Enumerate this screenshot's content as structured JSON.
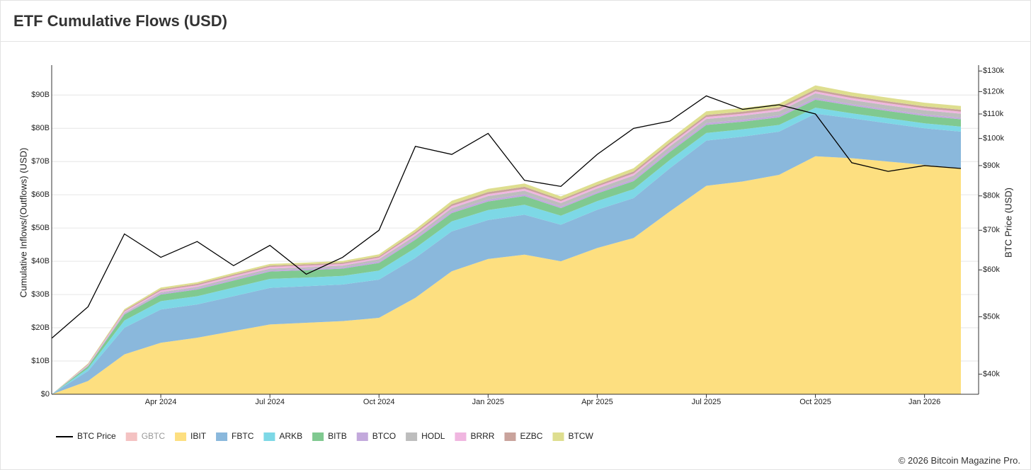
{
  "header": {
    "title": "ETF Cumulative Flows (USD)"
  },
  "chart_data": {
    "type": "area",
    "stacked": true,
    "y_label": "Cumulative Inflows/(Outflows) (USD)",
    "y2_label": "BTC Price (USD)",
    "y2_log": true,
    "grid": true,
    "legend": "bottom-left",
    "categories": [
      null,
      null,
      null,
      "Apr 2024",
      null,
      null,
      "Jul 2024",
      null,
      null,
      "Oct 2024",
      null,
      null,
      "Jan 2025",
      null,
      null,
      "Apr 2025",
      null,
      null,
      "Jul 2025",
      null,
      null,
      "Oct 2025",
      null,
      null,
      "Jan 2026",
      null
    ],
    "ylim": [
      0,
      99
    ],
    "yticks": [
      {
        "value": 0,
        "label": "$0"
      },
      {
        "value": 10,
        "label": "$10B"
      },
      {
        "value": 20,
        "label": "$20B"
      },
      {
        "value": 30,
        "label": "$30B"
      },
      {
        "value": 40,
        "label": "$40B"
      },
      {
        "value": 50,
        "label": "$50B"
      },
      {
        "value": 60,
        "label": "$60B"
      },
      {
        "value": 70,
        "label": "$70B"
      },
      {
        "value": 80,
        "label": "$80B"
      },
      {
        "value": 90,
        "label": "$90B"
      }
    ],
    "y2lim": [
      37000,
      133000
    ],
    "y2ticks": [
      {
        "value": 40000,
        "label": "$40k"
      },
      {
        "value": 50000,
        "label": "$50k"
      },
      {
        "value": 60000,
        "label": "$60k"
      },
      {
        "value": 70000,
        "label": "$70k"
      },
      {
        "value": 80000,
        "label": "$80k"
      },
      {
        "value": 90000,
        "label": "$90k"
      },
      {
        "value": 100000,
        "label": "$100k"
      },
      {
        "value": 110000,
        "label": "$110k"
      },
      {
        "value": 120000,
        "label": "$120k"
      },
      {
        "value": 130000,
        "label": "$130k"
      }
    ],
    "series": [
      {
        "name": "BTC Price",
        "color": "#000000",
        "axis": "y2",
        "kind": "line",
        "values": [
          46000,
          52000,
          69000,
          63000,
          67000,
          61000,
          66000,
          59000,
          63000,
          70000,
          97000,
          94000,
          102000,
          85000,
          83000,
          94000,
          104000,
          107000,
          118000,
          112000,
          114000,
          110000,
          91000,
          88000,
          90000,
          89000
        ]
      },
      {
        "name": "GBTC",
        "color": "#f4c2c2",
        "hidden": true
      },
      {
        "name": "IBIT",
        "color": "#fddf80",
        "values": [
          0,
          4,
          12,
          15.5,
          17,
          19,
          21,
          21.5,
          22,
          23,
          29,
          37,
          40.7,
          42,
          40,
          44,
          47,
          55,
          62.7,
          64,
          66,
          71.6,
          71,
          70,
          69,
          68
        ]
      },
      {
        "name": "FBTC",
        "color": "#8ab8dc",
        "values": [
          0,
          3,
          8,
          10,
          10,
          10.5,
          11,
          11,
          11,
          11.5,
          12,
          12,
          11.7,
          12,
          11,
          11.5,
          12,
          13,
          13.6,
          13.5,
          13,
          12.8,
          12,
          11.5,
          11,
          11
        ]
      },
      {
        "name": "ARKB",
        "color": "#7dd8e6",
        "values": [
          0,
          0.8,
          2.2,
          2.5,
          2.5,
          2.6,
          2.7,
          2.6,
          2.6,
          2.7,
          3,
          3,
          3,
          3,
          2.7,
          2.6,
          2.7,
          2.5,
          2.3,
          2.2,
          2,
          1.8,
          1.5,
          1.5,
          1.5,
          1.5
        ]
      },
      {
        "name": "BITB",
        "color": "#80c990",
        "values": [
          0,
          0.6,
          1.8,
          2,
          2,
          2.1,
          2.2,
          2.2,
          2.2,
          2.3,
          2.5,
          2.5,
          2.6,
          2.6,
          2.3,
          2.3,
          2.4,
          2.4,
          2.4,
          2.3,
          2.3,
          2.4,
          2.3,
          2.2,
          2.2,
          2.2
        ]
      },
      {
        "name": "BTCO",
        "color": "#c3a9dc",
        "values": [
          0,
          0.2,
          0.3,
          0.4,
          0.4,
          0.4,
          0.4,
          0.4,
          0.4,
          0.5,
          0.5,
          0.6,
          0.6,
          0.6,
          0.5,
          0.5,
          0.6,
          0.6,
          0.6,
          0.6,
          0.6,
          0.6,
          0.5,
          0.5,
          0.5,
          0.5
        ]
      },
      {
        "name": "HODL",
        "color": "#bdbdbd",
        "values": [
          0,
          0.1,
          0.2,
          0.3,
          0.4,
          0.5,
          0.5,
          0.5,
          0.5,
          0.6,
          0.7,
          0.9,
          1,
          1,
          1,
          1,
          1.1,
          1.1,
          1.2,
          1.2,
          1.2,
          1.3,
          1.2,
          1.2,
          1.2,
          1.2
        ]
      },
      {
        "name": "BRRR",
        "color": "#f0b6e0",
        "values": [
          0,
          0.2,
          0.4,
          0.5,
          0.5,
          0.5,
          0.5,
          0.5,
          0.5,
          0.5,
          0.6,
          0.6,
          0.6,
          0.6,
          0.6,
          0.6,
          0.6,
          0.6,
          0.6,
          0.6,
          0.6,
          0.6,
          0.6,
          0.6,
          0.6,
          0.6
        ]
      },
      {
        "name": "EZBC",
        "color": "#c9a39c",
        "values": [
          0,
          0.2,
          0.3,
          0.4,
          0.4,
          0.4,
          0.4,
          0.4,
          0.4,
          0.4,
          0.5,
          0.6,
          0.6,
          0.6,
          0.5,
          0.5,
          0.6,
          0.6,
          0.6,
          0.6,
          0.6,
          0.6,
          0.6,
          0.6,
          0.6,
          0.6
        ]
      },
      {
        "name": "BTCW",
        "color": "#dede8f",
        "values": [
          0,
          0.2,
          0.4,
          0.5,
          0.5,
          0.5,
          0.5,
          0.5,
          0.5,
          0.6,
          0.8,
          1,
          1,
          1,
          0.9,
          0.9,
          1,
          1,
          1.1,
          1.1,
          1.1,
          1.2,
          1.1,
          1.1,
          1.1,
          1.1
        ]
      }
    ]
  },
  "footer": {
    "text": "© 2026 Bitcoin Magazine Pro."
  }
}
